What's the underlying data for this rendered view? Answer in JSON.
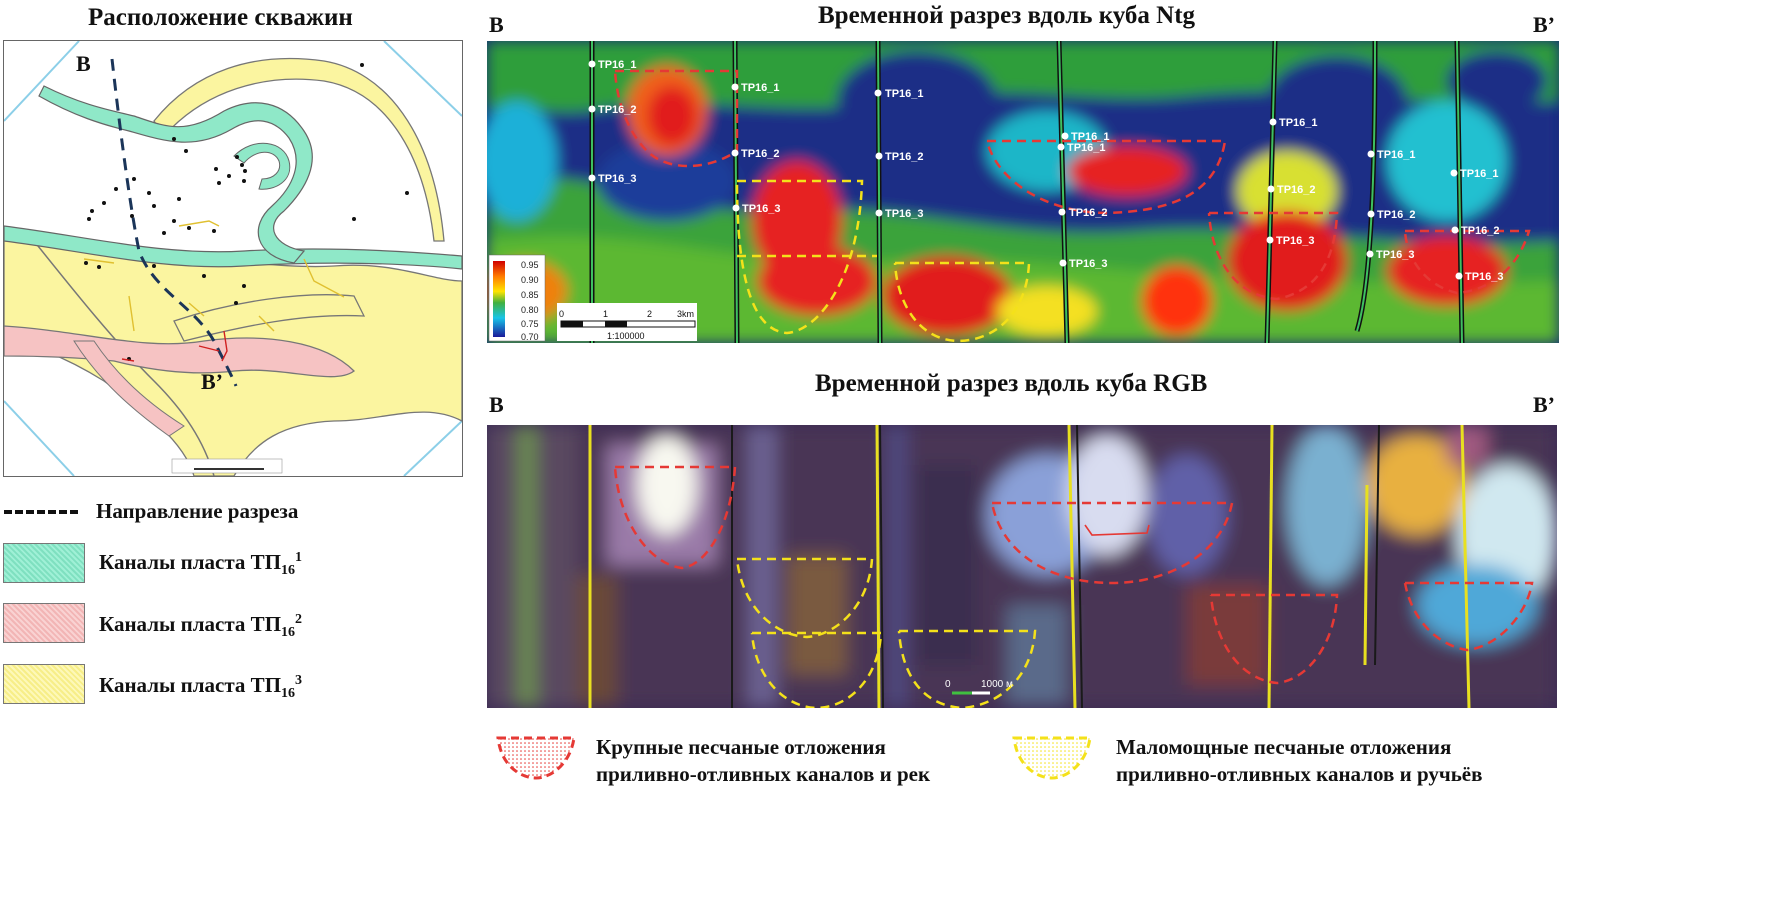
{
  "map": {
    "title": "Расположение скважин",
    "label_start": "B",
    "label_end": "B’"
  },
  "ntg_section": {
    "title": "Временной разрез вдоль куба Ntg",
    "left_label": "B",
    "right_label": "B’",
    "colorbar_ticks": [
      "0.95",
      "0.90",
      "0.85",
      "0.80",
      "0.75",
      "0.70"
    ],
    "scalebar_ticks": [
      "0",
      "1",
      "2",
      "3km"
    ],
    "scale_text": "1:100000",
    "wells": [
      {
        "markers": [
          "TP16_1",
          "TP16_2",
          "TP16_3"
        ]
      },
      {
        "markers": [
          "TP16_1",
          "TP16_2",
          "TP16_3"
        ]
      },
      {
        "markers": [
          "TP16_1",
          "TP16_2",
          "TP16_3"
        ]
      },
      {
        "markers": [
          "TP16_1",
          "TP16_1",
          "TP16_2",
          "TP16_3"
        ]
      },
      {
        "markers": [
          "TP16_1",
          "TP16_2",
          "TP16_3"
        ]
      },
      {
        "markers": [
          "TP16_1",
          "TP16_2",
          "TP16_3"
        ]
      },
      {
        "markers": [
          "TP16_1",
          "TP16_2",
          "TP16_3"
        ]
      }
    ]
  },
  "rgb_section": {
    "title": "Временной разрез вдоль куба RGB",
    "left_label": "B",
    "right_label": "B’",
    "scalebar_ticks": [
      "0",
      "1000 м"
    ]
  },
  "legend": {
    "direction": "Направление разреза",
    "items": [
      {
        "label": "Каналы пласта ТП",
        "sub": "16",
        "sup": "1",
        "color": "#8fe8c8"
      },
      {
        "label": "Каналы пласта ТП",
        "sub": "16",
        "sup": "2",
        "color": "#f6c3c3"
      },
      {
        "label": "Каналы пласта ТП",
        "sub": "16",
        "sup": "3",
        "color": "#fbf5a0"
      }
    ]
  },
  "bottom_legend": {
    "large": {
      "line1": "Крупные песчаные отложения",
      "line2": "приливно-отливных каналов и рек",
      "color": "#e53935"
    },
    "thin": {
      "line1": "Маломощные песчаные отложения",
      "line2": "приливно-отливных каналов и ручьёв",
      "color": "#f4e11a"
    }
  }
}
